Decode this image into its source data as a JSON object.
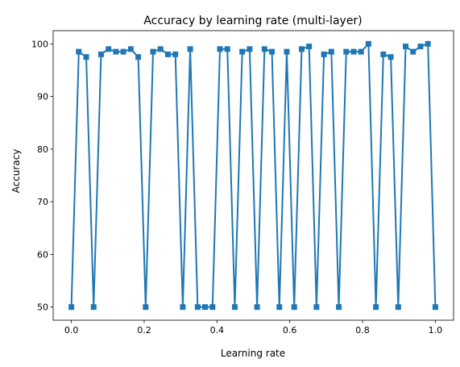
{
  "chart_data": {
    "type": "line",
    "title": "Accuracy by learning rate (multi-layer)",
    "xlabel": "Learning rate",
    "ylabel": "Accuracy",
    "xlim": [
      -0.05,
      1.05
    ],
    "ylim": [
      47.5,
      102.5
    ],
    "xticks": [
      0.0,
      0.2,
      0.4,
      0.6,
      0.8,
      1.0
    ],
    "xtick_labels": [
      "0.0",
      "0.2",
      "0.4",
      "0.6",
      "0.8",
      "1.0"
    ],
    "yticks": [
      50,
      60,
      70,
      80,
      90,
      100
    ],
    "ytick_labels": [
      "50",
      "60",
      "70",
      "80",
      "90",
      "100"
    ],
    "grid": false,
    "legend": "none",
    "marker": "square",
    "line_color": "#1f77b4",
    "series": [
      {
        "x": [
          0.0,
          0.0204,
          0.0408,
          0.0612,
          0.0816,
          0.102,
          0.1224,
          0.1429,
          0.1633,
          0.1837,
          0.2041,
          0.2245,
          0.2449,
          0.2653,
          0.2857,
          0.3061,
          0.3265,
          0.3469,
          0.3673,
          0.3878,
          0.4082,
          0.4286,
          0.449,
          0.4694,
          0.4898,
          0.5102,
          0.5306,
          0.551,
          0.5714,
          0.5918,
          0.6122,
          0.6327,
          0.6531,
          0.6735,
          0.6939,
          0.7143,
          0.7347,
          0.7551,
          0.7755,
          0.7959,
          0.8163,
          0.8367,
          0.8571,
          0.8776,
          0.898,
          0.9184,
          0.9388,
          0.9592,
          0.9796,
          1.0
        ],
        "y": [
          50,
          98.5,
          97.5,
          50,
          98,
          99,
          98.5,
          98.5,
          99,
          97.5,
          50,
          98.5,
          99,
          98,
          98,
          50,
          99,
          50,
          50,
          50,
          99,
          99,
          50,
          98.5,
          99,
          50,
          99,
          98.5,
          50,
          98.5,
          50,
          99,
          99.5,
          50,
          98,
          98.5,
          50,
          98.5,
          98.5,
          98.5,
          100,
          50,
          98,
          97.5,
          50,
          99.5,
          98.5,
          99.5,
          100,
          50
        ]
      }
    ]
  }
}
